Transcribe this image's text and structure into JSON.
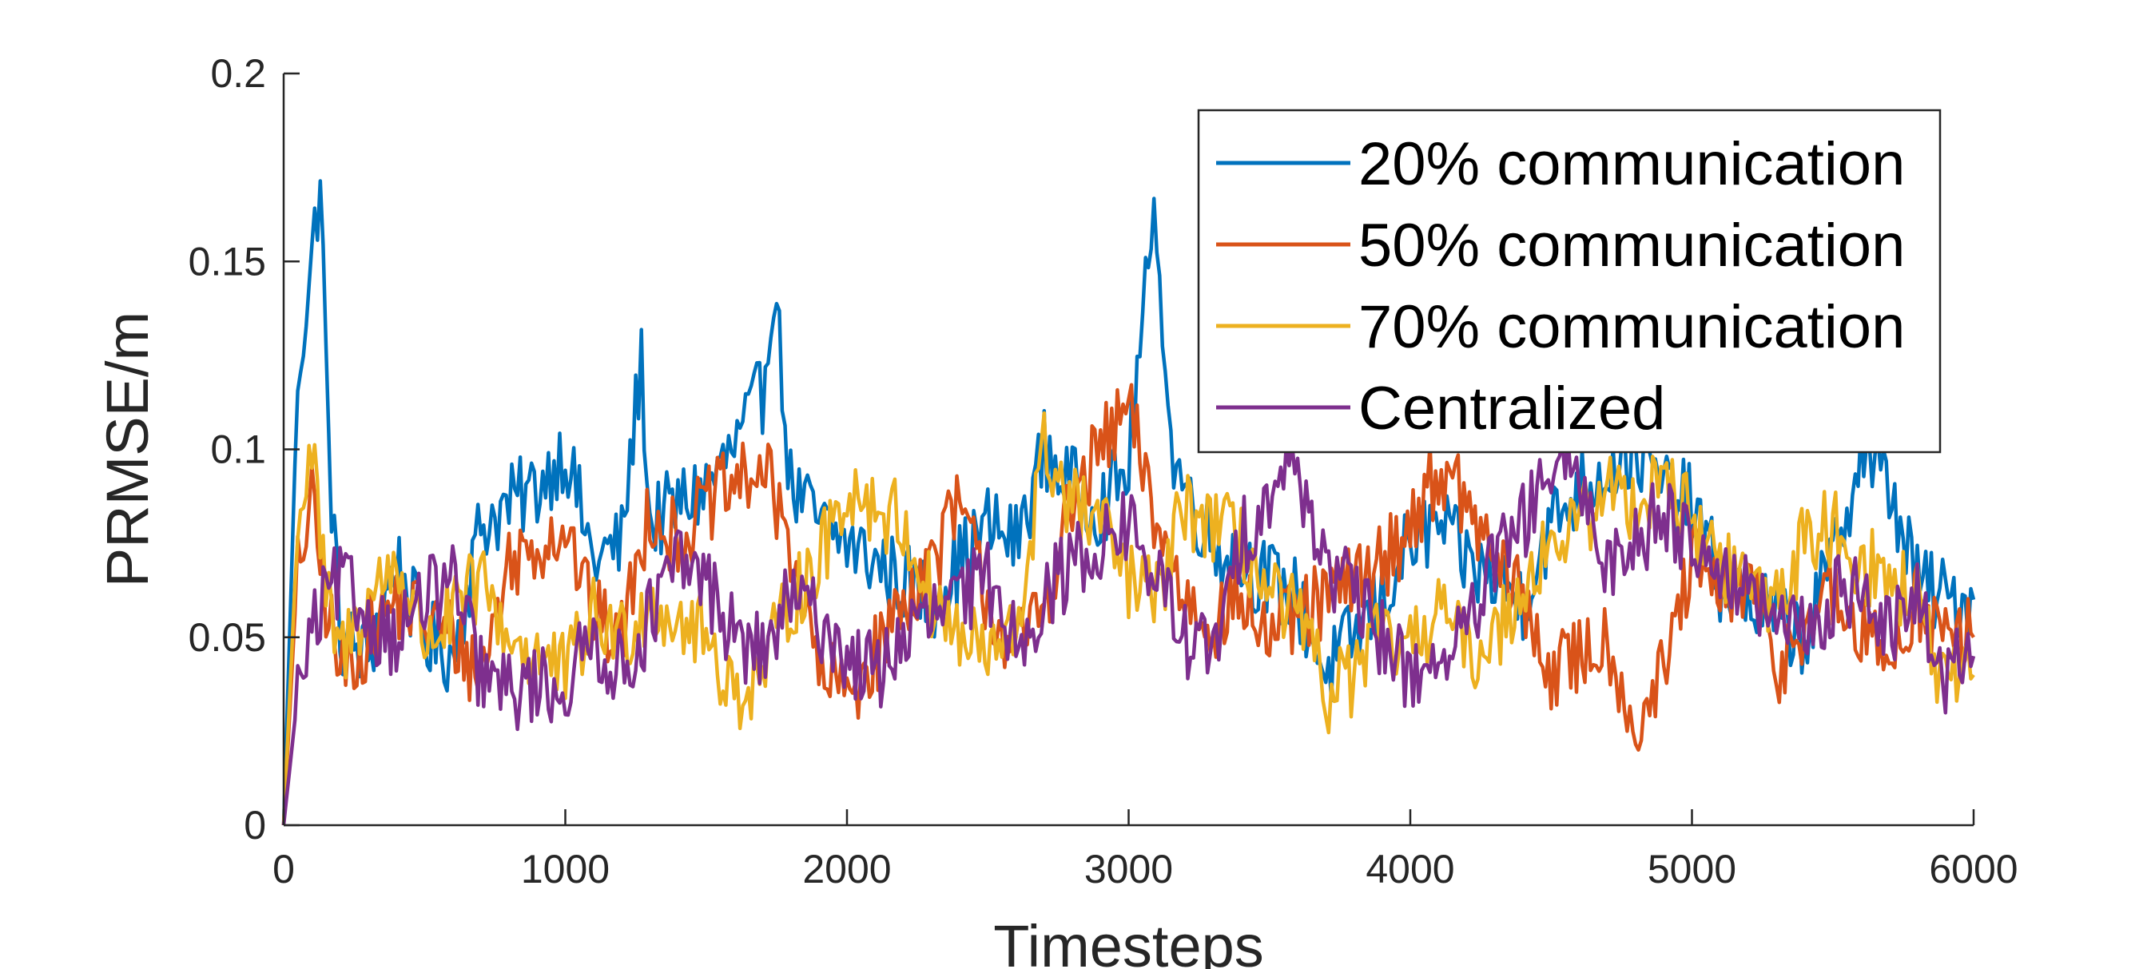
{
  "chart_data": {
    "type": "line",
    "title": "",
    "xlabel": "Timesteps",
    "ylabel": "PRMSE/m",
    "xlim": [
      0,
      6000
    ],
    "ylim": [
      0,
      0.2
    ],
    "xticks": [
      0,
      1000,
      2000,
      3000,
      4000,
      5000,
      6000
    ],
    "xtick_labels": [
      "0",
      "1000",
      "2000",
      "3000",
      "4000",
      "5000",
      "6000"
    ],
    "yticks": [
      0,
      0.05,
      0.1,
      0.15,
      0.2
    ],
    "ytick_labels": [
      "0",
      "0.05",
      "0.1",
      "0.15",
      "0.2"
    ],
    "grid": false,
    "legend_position": "top-right",
    "series": [
      {
        "name": "20% communication",
        "color": "#0072BD",
        "x": [
          0,
          50,
          100,
          130,
          160,
          200,
          300,
          400,
          500,
          600,
          700,
          800,
          900,
          1000,
          1100,
          1200,
          1270,
          1300,
          1400,
          1500,
          1600,
          1700,
          1740,
          1800,
          1900,
          2000,
          2100,
          2200,
          2300,
          2400,
          2500,
          2600,
          2700,
          2800,
          2900,
          3000,
          3050,
          3100,
          3150,
          3200,
          3300,
          3400,
          3500,
          3600,
          3700,
          3800,
          3900,
          4000,
          4100,
          4200,
          4300,
          4400,
          4500,
          4600,
          4700,
          4800,
          4900,
          5000,
          5100,
          5200,
          5300,
          5400,
          5500,
          5600,
          5700,
          5800,
          5900,
          6000
        ],
        "values": [
          0,
          0.12,
          0.15,
          0.173,
          0.1,
          0.05,
          0.045,
          0.07,
          0.05,
          0.045,
          0.08,
          0.085,
          0.09,
          0.1,
          0.07,
          0.075,
          0.124,
          0.08,
          0.085,
          0.09,
          0.1,
          0.115,
          0.146,
          0.09,
          0.08,
          0.075,
          0.07,
          0.065,
          0.06,
          0.07,
          0.08,
          0.075,
          0.1,
          0.09,
          0.085,
          0.095,
          0.135,
          0.162,
          0.1,
          0.09,
          0.075,
          0.07,
          0.065,
          0.06,
          0.04,
          0.05,
          0.06,
          0.075,
          0.08,
          0.07,
          0.065,
          0.06,
          0.08,
          0.09,
          0.095,
          0.1,
          0.09,
          0.085,
          0.065,
          0.06,
          0.055,
          0.05,
          0.07,
          0.1,
          0.09,
          0.065,
          0.06,
          0.06
        ]
      },
      {
        "name": "50% communication",
        "color": "#D95319",
        "x": [
          0,
          50,
          100,
          150,
          200,
          300,
          400,
          500,
          600,
          700,
          800,
          900,
          1000,
          1100,
          1200,
          1300,
          1400,
          1500,
          1600,
          1700,
          1800,
          1900,
          2000,
          2100,
          2200,
          2300,
          2400,
          2500,
          2600,
          2700,
          2800,
          2900,
          3000,
          3100,
          3200,
          3300,
          3400,
          3500,
          3600,
          3700,
          3800,
          3900,
          4000,
          4100,
          4200,
          4300,
          4400,
          4500,
          4600,
          4700,
          4800,
          4900,
          5000,
          5100,
          5200,
          5300,
          5400,
          5500,
          5600,
          5700,
          5800,
          5900,
          6000
        ],
        "values": [
          0,
          0.07,
          0.085,
          0.06,
          0.04,
          0.05,
          0.06,
          0.055,
          0.05,
          0.04,
          0.07,
          0.075,
          0.08,
          0.055,
          0.05,
          0.085,
          0.075,
          0.085,
          0.09,
          0.095,
          0.075,
          0.04,
          0.035,
          0.045,
          0.06,
          0.07,
          0.085,
          0.06,
          0.045,
          0.06,
          0.085,
          0.1,
          0.11,
          0.08,
          0.06,
          0.055,
          0.06,
          0.05,
          0.055,
          0.06,
          0.065,
          0.07,
          0.08,
          0.095,
          0.085,
          0.07,
          0.06,
          0.04,
          0.045,
          0.05,
          0.025,
          0.04,
          0.07,
          0.06,
          0.065,
          0.04,
          0.055,
          0.06,
          0.05,
          0.045,
          0.06,
          0.05,
          0.05
        ]
      },
      {
        "name": "70% communication",
        "color": "#EDB120",
        "x": [
          0,
          50,
          100,
          150,
          200,
          300,
          400,
          500,
          600,
          700,
          800,
          900,
          1000,
          1100,
          1200,
          1300,
          1400,
          1500,
          1600,
          1700,
          1800,
          1900,
          2000,
          2100,
          2200,
          2300,
          2400,
          2500,
          2600,
          2700,
          2800,
          2900,
          3000,
          3100,
          3200,
          3300,
          3400,
          3500,
          3600,
          3700,
          3800,
          3900,
          4000,
          4100,
          4200,
          4300,
          4400,
          4500,
          4600,
          4700,
          4800,
          4900,
          5000,
          5100,
          5200,
          5300,
          5400,
          5500,
          5600,
          5700,
          5800,
          5900,
          6000
        ],
        "values": [
          0,
          0.08,
          0.1,
          0.06,
          0.045,
          0.06,
          0.07,
          0.05,
          0.055,
          0.065,
          0.05,
          0.045,
          0.04,
          0.055,
          0.05,
          0.06,
          0.055,
          0.05,
          0.035,
          0.04,
          0.06,
          0.07,
          0.09,
          0.085,
          0.08,
          0.06,
          0.05,
          0.045,
          0.05,
          0.1,
          0.085,
          0.08,
          0.065,
          0.06,
          0.085,
          0.08,
          0.075,
          0.06,
          0.055,
          0.035,
          0.04,
          0.05,
          0.045,
          0.06,
          0.045,
          0.05,
          0.065,
          0.075,
          0.08,
          0.09,
          0.085,
          0.095,
          0.08,
          0.07,
          0.065,
          0.06,
          0.075,
          0.08,
          0.07,
          0.065,
          0.06,
          0.035,
          0.04
        ]
      },
      {
        "name": "Centralized",
        "color": "#7E2F8E",
        "x": [
          0,
          50,
          100,
          150,
          200,
          300,
          400,
          500,
          600,
          700,
          800,
          900,
          1000,
          1100,
          1200,
          1300,
          1400,
          1500,
          1600,
          1700,
          1800,
          1900,
          2000,
          2100,
          2200,
          2300,
          2400,
          2500,
          2600,
          2700,
          2800,
          2900,
          3000,
          3100,
          3200,
          3300,
          3400,
          3500,
          3600,
          3700,
          3800,
          3900,
          4000,
          4100,
          4200,
          4300,
          4400,
          4500,
          4600,
          4700,
          4800,
          4900,
          5000,
          5100,
          5200,
          5300,
          5400,
          5500,
          5600,
          5700,
          5800,
          5900,
          6000
        ],
        "values": [
          0,
          0.035,
          0.05,
          0.06,
          0.065,
          0.055,
          0.05,
          0.06,
          0.065,
          0.04,
          0.035,
          0.038,
          0.036,
          0.05,
          0.04,
          0.055,
          0.07,
          0.065,
          0.05,
          0.045,
          0.06,
          0.055,
          0.045,
          0.04,
          0.05,
          0.055,
          0.06,
          0.065,
          0.05,
          0.06,
          0.07,
          0.075,
          0.08,
          0.065,
          0.05,
          0.045,
          0.075,
          0.09,
          0.095,
          0.07,
          0.06,
          0.05,
          0.04,
          0.045,
          0.05,
          0.07,
          0.08,
          0.095,
          0.09,
          0.07,
          0.075,
          0.085,
          0.075,
          0.07,
          0.06,
          0.055,
          0.05,
          0.06,
          0.065,
          0.05,
          0.06,
          0.04,
          0.045
        ]
      }
    ]
  }
}
